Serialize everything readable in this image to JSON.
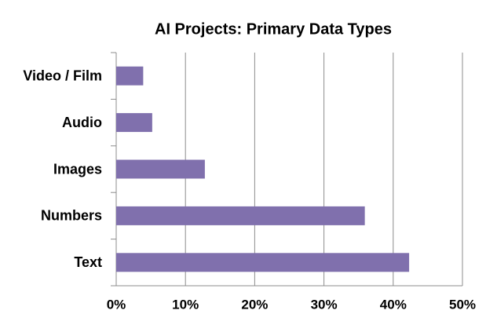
{
  "chart_data": {
    "type": "hbar",
    "title": "AI Projects: Primary Data Types",
    "categories": [
      "Video / Film",
      "Audio",
      "Images",
      "Numbers",
      "Text"
    ],
    "values": [
      3.9,
      5.2,
      12.8,
      35.9,
      42.3
    ],
    "color": "#8070ad",
    "xlim": [
      0,
      50
    ],
    "xticks": [
      {
        "value": 0,
        "label": "0%"
      },
      {
        "value": 10,
        "label": "10%"
      },
      {
        "value": 20,
        "label": "20%"
      },
      {
        "value": 30,
        "label": "30%"
      },
      {
        "value": 40,
        "label": "40%"
      },
      {
        "value": 50,
        "label": "50%"
      }
    ],
    "grid": true
  }
}
